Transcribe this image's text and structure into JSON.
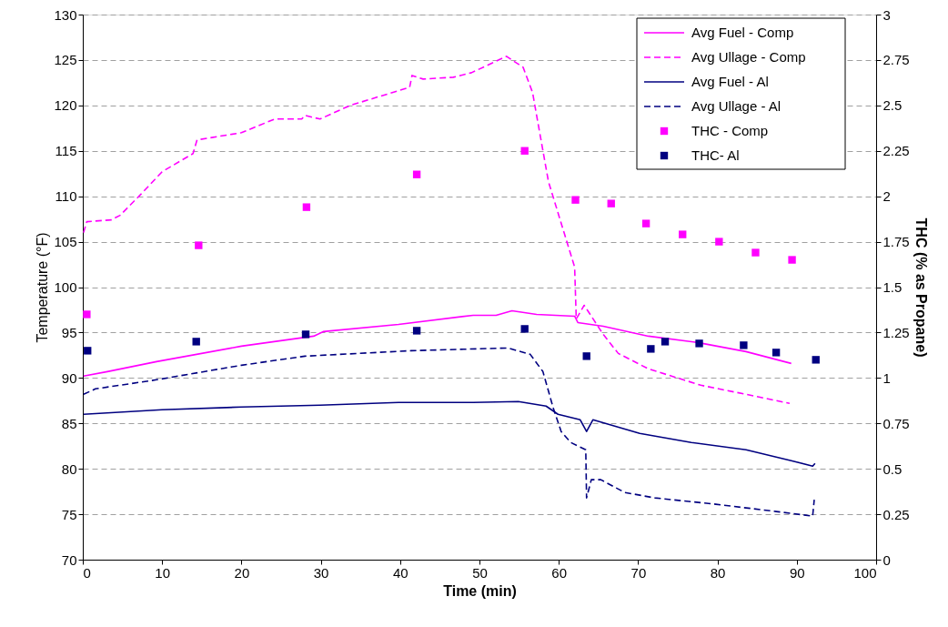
{
  "chart_data": {
    "type": "line",
    "xlabel": "Time (min)",
    "ylabel": "Temperature (°F)",
    "y2label": "THC (% as Propane)",
    "xlim": [
      0,
      100
    ],
    "xticks": [
      0,
      10,
      20,
      30,
      40,
      50,
      60,
      70,
      80,
      90,
      100
    ],
    "ylim": [
      70,
      130
    ],
    "yticks": [
      70,
      75,
      80,
      85,
      90,
      95,
      100,
      105,
      110,
      115,
      120,
      125,
      130
    ],
    "y2lim": [
      0,
      3
    ],
    "y2ticks": [
      0,
      0.25,
      0.5,
      0.75,
      1,
      1.25,
      1.5,
      1.75,
      2,
      2.25,
      2.5,
      2.75,
      3
    ],
    "grid": "y",
    "legend": "top right",
    "series": [
      {
        "name": "Avg Fuel - Comp",
        "line_style": "solid",
        "color": "#ff00ff",
        "x": [
          0.1,
          3.1,
          9.3,
          20,
          29.1,
          30.3,
          39.8,
          49.2,
          52.1,
          54.1,
          57.2,
          62,
          62.4,
          65.6,
          71.3,
          77.5,
          83.6,
          89.3
        ],
        "values": [
          90.2,
          90.7,
          91.8,
          93.5,
          94.6,
          95.1,
          95.9,
          96.9,
          96.9,
          97.4,
          97.0,
          96.8,
          96.1,
          95.7,
          94.6,
          93.9,
          92.9,
          91.6
        ]
      },
      {
        "name": "Avg Ullage - Comp",
        "line_style": "dashed",
        "color": "#ff00ff",
        "x": [
          0.1,
          0.5,
          3.6,
          4.7,
          7.3,
          10,
          13.9,
          14.4,
          20,
          24.2,
          27.6,
          28,
          29.9,
          33.7,
          41.2,
          41.5,
          42.9,
          46.7,
          49,
          53.4,
          55.5,
          56.7,
          57,
          58.7,
          60.7,
          62,
          62.2,
          63.2,
          65.6,
          67.5,
          71.3,
          77.9,
          83.6,
          89.1
        ],
        "values": [
          106,
          107.2,
          107.4,
          107.9,
          110.2,
          112.7,
          114.7,
          116.2,
          117.0,
          118.5,
          118.5,
          118.9,
          118.5,
          120.0,
          122.0,
          123.3,
          122.9,
          123.1,
          123.6,
          125.4,
          124.2,
          121.4,
          119.9,
          111.6,
          105.9,
          102.2,
          96.5,
          98,
          94.8,
          92.7,
          91,
          89.2,
          88.2,
          87.2
        ]
      },
      {
        "name": "Avg Fuel - Al",
        "line_style": "solid",
        "color": "#000080",
        "x": [
          0.1,
          10,
          20,
          29.9,
          39.8,
          49.2,
          54.9,
          58.4,
          59.9,
          62.7,
          63.5,
          64.3,
          70.2,
          76.7,
          83.6,
          89.3,
          92,
          92.3
        ],
        "values": [
          86.0,
          86.5,
          86.8,
          87.0,
          87.3,
          87.3,
          87.4,
          86.9,
          86.0,
          85.4,
          84.1,
          85.4,
          83.9,
          82.9,
          82.1,
          80.9,
          80.3,
          80.6
        ]
      },
      {
        "name": "Avg Ullage - Al",
        "line_style": "dashed",
        "color": "#000080",
        "x": [
          0.1,
          1.6,
          9.3,
          20,
          28,
          41.4,
          53.6,
          56.4,
          58,
          59.3,
          60.3,
          61.5,
          63.4,
          63.5,
          64.1,
          65.3,
          68.3,
          72.1,
          79.8,
          87.4,
          92,
          92.2
        ],
        "values": [
          88.2,
          88.8,
          89.8,
          91.4,
          92.4,
          93.0,
          93.3,
          92.6,
          90.7,
          86.7,
          84.1,
          82.9,
          82.1,
          76.8,
          78.8,
          78.8,
          77.4,
          76.8,
          76.1,
          75.3,
          74.8,
          76.6
        ]
      },
      {
        "name": "THC - Comp",
        "type": "scatter",
        "axis": "y2",
        "marker": "square",
        "color": "#ff00ff",
        "x": [
          0.5,
          14.6,
          28.2,
          42.1,
          55.7,
          62.1,
          66.6,
          71,
          75.6,
          80.2,
          84.8,
          89.4
        ],
        "values": [
          1.35,
          1.73,
          1.94,
          2.12,
          2.25,
          1.98,
          1.96,
          1.85,
          1.79,
          1.75,
          1.69,
          1.65
        ]
      },
      {
        "name": "THC- Al",
        "type": "scatter",
        "axis": "y2",
        "marker": "square",
        "color": "#000080",
        "x": [
          0.6,
          14.3,
          28.1,
          42.1,
          55.7,
          63.5,
          71.6,
          73.4,
          77.7,
          83.3,
          87.4,
          92.4
        ],
        "values": [
          1.15,
          1.2,
          1.24,
          1.26,
          1.27,
          1.12,
          1.16,
          1.2,
          1.19,
          1.18,
          1.14,
          1.1
        ]
      }
    ]
  }
}
